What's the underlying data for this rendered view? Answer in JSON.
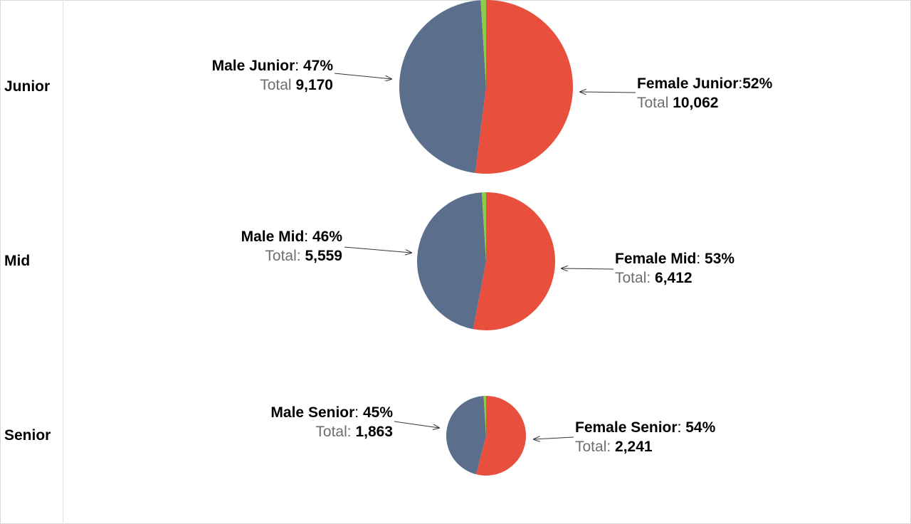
{
  "chart_data": [
    {
      "type": "pie",
      "row": "Junior",
      "colors": [
        "#e94f3d",
        "#5b6f8c",
        "#8fc94a"
      ],
      "slices": [
        {
          "category": "Female",
          "percent": 52,
          "total": 10062
        },
        {
          "category": "Male",
          "percent": 47,
          "total": 9170
        },
        {
          "category": "Other",
          "percent": 1
        }
      ],
      "labels": {
        "male": {
          "name": "Male Junior",
          "sep": ": ",
          "pct": "47%",
          "total_label": "Total ",
          "total": "9,170"
        },
        "female": {
          "name": "Female Junior",
          "sep": ":",
          "pct": "52%",
          "total_label": "Total ",
          "total": "10,062"
        }
      }
    },
    {
      "type": "pie",
      "row": "Mid",
      "colors": [
        "#e94f3d",
        "#5b6f8c",
        "#8fc94a"
      ],
      "slices": [
        {
          "category": "Female",
          "percent": 53,
          "total": 6412
        },
        {
          "category": "Male",
          "percent": 46,
          "total": 5559
        },
        {
          "category": "Other",
          "percent": 1
        }
      ],
      "labels": {
        "male": {
          "name": "Male Mid",
          "sep": ": ",
          "pct": "46%",
          "total_label": "Total: ",
          "total": "5,559"
        },
        "female": {
          "name": "Female Mid",
          "sep": ": ",
          "pct": "53%",
          "total_label": "Total: ",
          "total": "6,412"
        }
      }
    },
    {
      "type": "pie",
      "row": "Senior",
      "colors": [
        "#e94f3d",
        "#5b6f8c",
        "#8fc94a"
      ],
      "slices": [
        {
          "category": "Female",
          "percent": 54,
          "total": 2241
        },
        {
          "category": "Male",
          "percent": 45,
          "total": 1863
        },
        {
          "category": "Other",
          "percent": 1
        }
      ],
      "labels": {
        "male": {
          "name": "Male Senior",
          "sep": ": ",
          "pct": "45%",
          "total_label": "Total: ",
          "total": "1,863"
        },
        "female": {
          "name": "Female Senior",
          "sep": ": ",
          "pct": "54%",
          "total_label": "Total: ",
          "total": "2,241"
        }
      }
    }
  ]
}
